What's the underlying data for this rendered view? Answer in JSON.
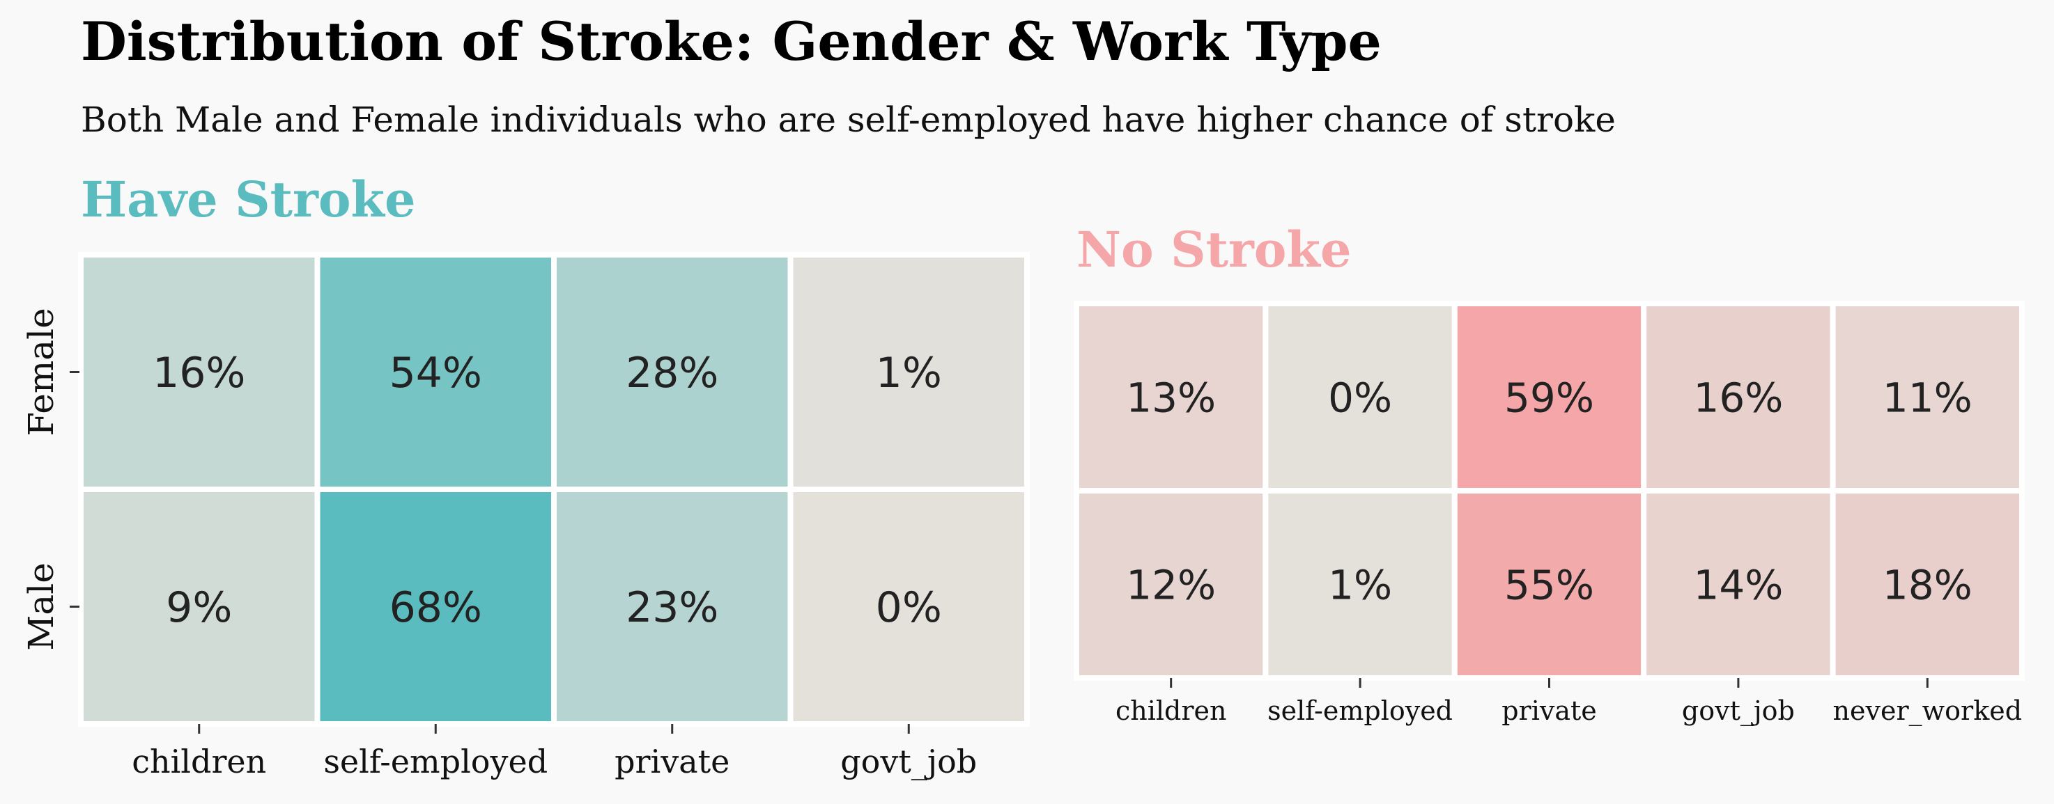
{
  "title": "Distribution of Stroke: Gender & Work Type",
  "subtitle": "Both Male and Female individuals who are self-employed have higher chance of stroke",
  "colors": {
    "background": "#f9f9f9",
    "stroke_accent": "#5bbcbf",
    "no_stroke_accent": "#f4a6a8",
    "neutral": "#e4e1db",
    "cell_border": "#ffffff",
    "value_text": "#222222"
  },
  "chart_data": [
    {
      "type": "heatmap",
      "title": "Have Stroke",
      "rows": [
        "Female",
        "Male"
      ],
      "columns": [
        "children",
        "self-employed",
        "private",
        "govt_job"
      ],
      "values": [
        [
          16,
          54,
          28,
          1
        ],
        [
          9,
          68,
          23,
          0
        ]
      ],
      "labels": [
        [
          "16%",
          "54%",
          "28%",
          "1%"
        ],
        [
          "9%",
          "68%",
          "23%",
          "0%"
        ]
      ],
      "unit": "%",
      "color_low": "#e4e1db",
      "color_high": "#5bbcbf"
    },
    {
      "type": "heatmap",
      "title": "No Stroke",
      "rows": [
        "Female",
        "Male"
      ],
      "columns": [
        "children",
        "self-employed",
        "private",
        "govt_job",
        "never_worked"
      ],
      "values": [
        [
          13,
          0,
          59,
          16,
          11
        ],
        [
          12,
          1,
          55,
          14,
          18
        ]
      ],
      "labels": [
        [
          "13%",
          "0%",
          "59%",
          "16%",
          "11%"
        ],
        [
          "12%",
          "1%",
          "55%",
          "14%",
          "18%"
        ]
      ],
      "unit": "%",
      "color_low": "#e4e1db",
      "color_high": "#f4a6a8"
    }
  ]
}
